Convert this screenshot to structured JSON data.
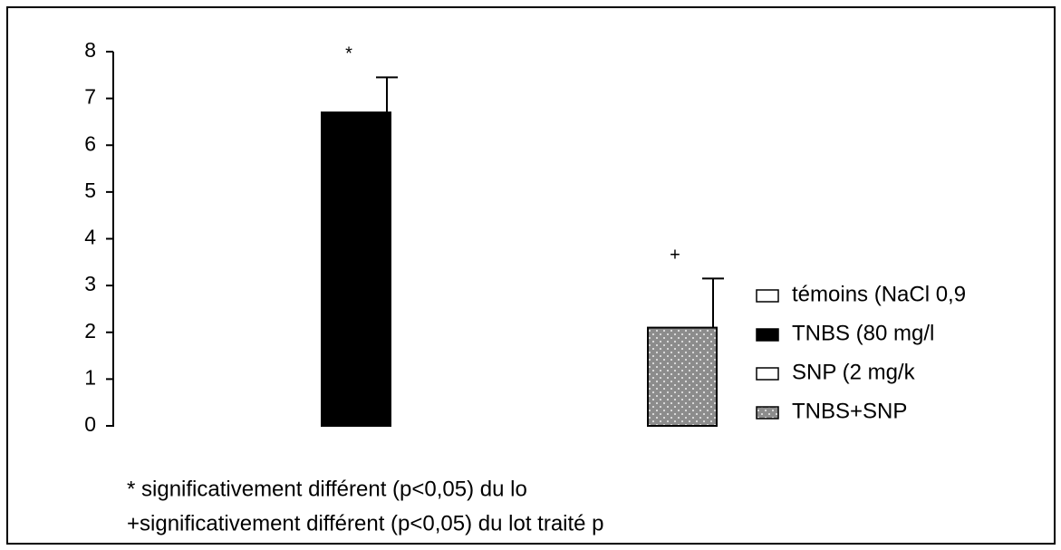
{
  "chart_data": {
    "type": "bar",
    "categories": [
      null,
      null,
      null,
      null
    ],
    "values": [
      0,
      6.7,
      0,
      2.1
    ],
    "errors": [
      0,
      0.75,
      0,
      1.05
    ],
    "colors": [
      "#ffffff",
      "#000000",
      "#ffffff",
      "#9a9a9a"
    ],
    "hatch": [
      false,
      false,
      false,
      true
    ],
    "bar_annotations": [
      null,
      "*",
      null,
      "+"
    ],
    "legend": [
      "témoins (NaCl 0,9",
      "TNBS (80 mg/l",
      "SNP (2 mg/k",
      "TNBS+SNP"
    ],
    "ylim": [
      0,
      8
    ],
    "yticks": [
      0,
      1,
      2,
      3,
      4,
      5,
      6,
      7,
      8
    ],
    "grid": false,
    "footnotes": [
      "* significativement différent (p<0,05) du lo",
      "+significativement différent (p<0,05) du lot traité p"
    ]
  }
}
